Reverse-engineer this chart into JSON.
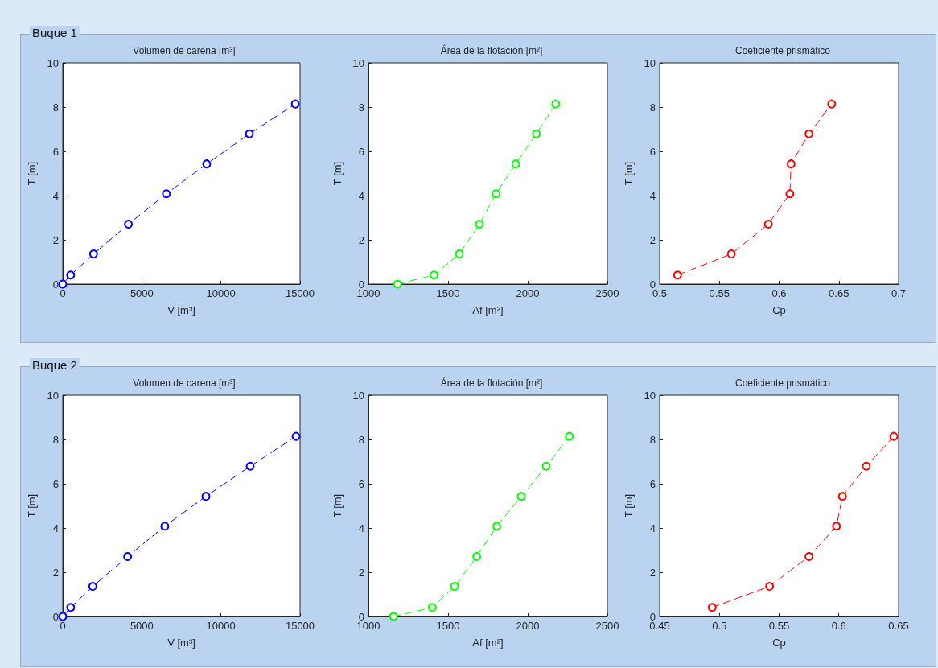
{
  "chart_data": [
    {
      "type": "line",
      "title": "Volumen de carena [m³]",
      "xlabel": "V [m³]",
      "ylabel": "T [m]",
      "annotations": [
        "Buque 1"
      ],
      "marker": "circle",
      "line_style": "dashed",
      "grid": false,
      "xlim": [
        0,
        15000
      ],
      "xticks": [
        0,
        5000,
        10000,
        15000
      ],
      "ylim": [
        0,
        10
      ],
      "yticks": [
        0,
        2,
        4,
        6,
        8,
        10
      ],
      "series": [
        {
          "color": "#0000ff",
          "x": [
            0,
            500,
            1950,
            4150,
            6550,
            9100,
            11800,
            14700
          ],
          "values": [
            0,
            0.41,
            1.36,
            2.71,
            4.08,
            5.43,
            6.79,
            8.14
          ]
        }
      ]
    },
    {
      "type": "line",
      "title": "Área de la flotación [m²]",
      "xlabel": "Af [m²]",
      "ylabel": "T [m]",
      "marker": "circle",
      "line_style": "dashed",
      "grid": false,
      "xlim": [
        1000,
        2500
      ],
      "xticks": [
        1000,
        1500,
        2000,
        2500
      ],
      "ylim": [
        0,
        10
      ],
      "yticks": [
        0,
        2,
        4,
        6,
        8,
        10
      ],
      "series": [
        {
          "color": "#00ff00",
          "x": [
            1183,
            1412,
            1571,
            1697,
            1801,
            1925,
            2054,
            2176
          ],
          "values": [
            0,
            0.41,
            1.36,
            2.71,
            4.08,
            5.43,
            6.79,
            8.14
          ]
        }
      ]
    },
    {
      "type": "line",
      "title": "Coeficiente prismático",
      "xlabel": "Cp",
      "ylabel": "T [m]",
      "marker": "circle",
      "line_style": "dashed",
      "grid": false,
      "xlim": [
        0.5,
        0.7
      ],
      "xticks": [
        0.5,
        0.55,
        0.6,
        0.65,
        0.7
      ],
      "ylim": [
        0,
        10
      ],
      "yticks": [
        0,
        2,
        4,
        6,
        8,
        10
      ],
      "series": [
        {
          "color": "#ff0000",
          "x": [
            0.515,
            0.56,
            0.591,
            0.609,
            0.61,
            0.625,
            0.644
          ],
          "values": [
            0.41,
            1.36,
            2.71,
            4.08,
            5.43,
            6.79,
            8.14
          ]
        }
      ]
    },
    {
      "type": "line",
      "title": "Volumen de carena [m³]",
      "xlabel": "V [m³]",
      "ylabel": "T [m]",
      "annotations": [
        "Buque 2"
      ],
      "marker": "circle",
      "line_style": "dashed",
      "grid": false,
      "xlim": [
        0,
        15000
      ],
      "xticks": [
        0,
        5000,
        10000,
        15000
      ],
      "ylim": [
        0,
        10
      ],
      "yticks": [
        0,
        2,
        4,
        6,
        8,
        10
      ],
      "series": [
        {
          "color": "#0000ff",
          "x": [
            0,
            500,
            1900,
            4100,
            6450,
            9050,
            11850,
            14750
          ],
          "values": [
            0,
            0.41,
            1.36,
            2.71,
            4.08,
            5.43,
            6.79,
            8.14
          ]
        }
      ]
    },
    {
      "type": "line",
      "title": "Área de la flotación [m²]",
      "xlabel": "Af [m²]",
      "ylabel": "T [m]",
      "marker": "circle",
      "line_style": "dashed",
      "grid": false,
      "xlim": [
        1000,
        2500
      ],
      "xticks": [
        1000,
        1500,
        2000,
        2500
      ],
      "ylim": [
        0,
        10
      ],
      "yticks": [
        0,
        2,
        4,
        6,
        8,
        10
      ],
      "series": [
        {
          "color": "#00ff00",
          "x": [
            1158,
            1401,
            1541,
            1680,
            1806,
            1960,
            2116,
            2262
          ],
          "values": [
            0,
            0.41,
            1.36,
            2.71,
            4.08,
            5.43,
            6.79,
            8.14
          ]
        }
      ]
    },
    {
      "type": "line",
      "title": "Coeficiente prismático",
      "xlabel": "Cp",
      "ylabel": "T [m]",
      "marker": "circle",
      "line_style": "dashed",
      "grid": false,
      "xlim": [
        0.45,
        0.65
      ],
      "xticks": [
        0.45,
        0.5,
        0.55,
        0.6,
        0.65
      ],
      "ylim": [
        0,
        10
      ],
      "yticks": [
        0,
        2,
        4,
        6,
        8,
        10
      ],
      "series": [
        {
          "color": "#ff0000",
          "x": [
            0.494,
            0.542,
            0.575,
            0.598,
            0.603,
            0.623,
            0.646
          ],
          "values": [
            0.41,
            1.36,
            2.71,
            4.08,
            5.43,
            6.79,
            8.14
          ]
        }
      ]
    }
  ]
}
